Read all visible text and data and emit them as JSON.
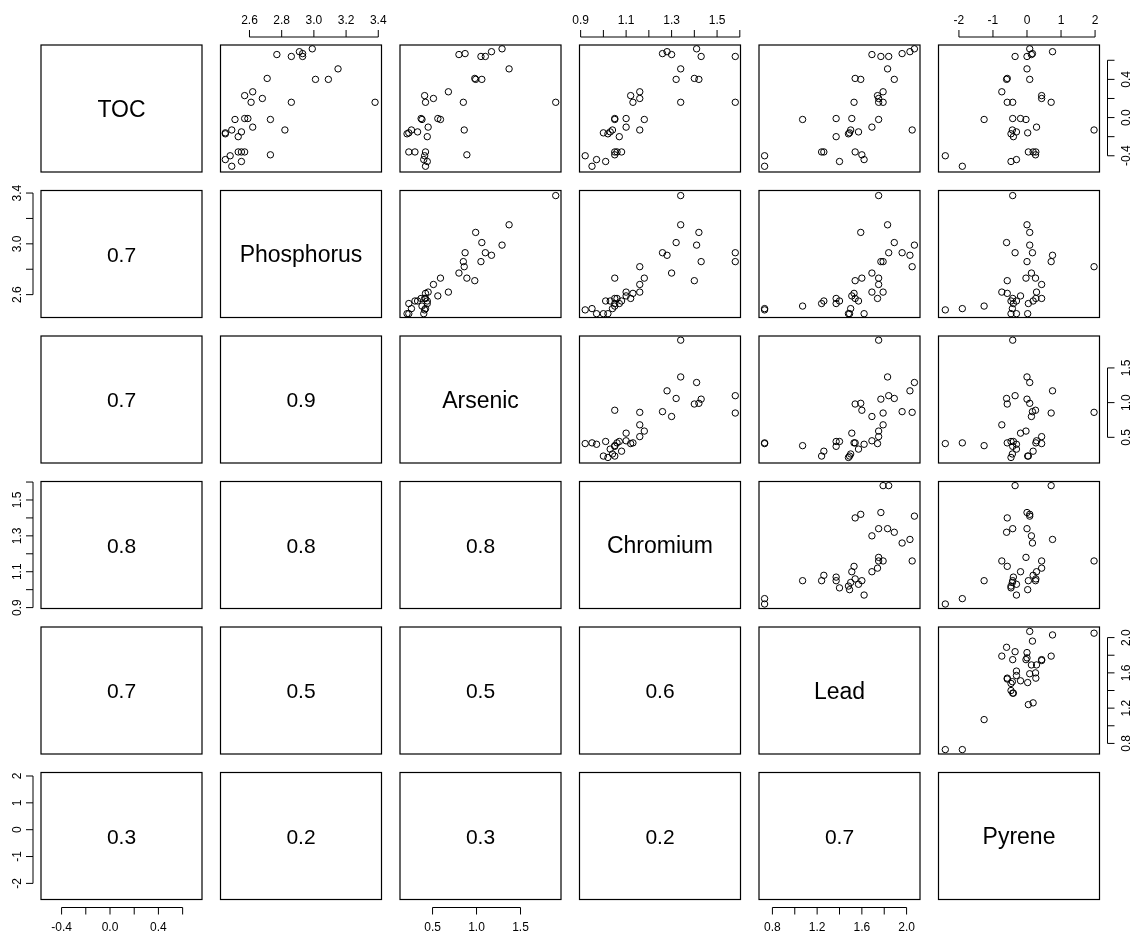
{
  "chart_data": [
    {
      "type": "other",
      "title": "TOC"
    },
    {
      "type": "scatter",
      "color": "#000000",
      "marker": "circle",
      "xlim": [
        2.42,
        3.42
      ],
      "ylim": [
        -0.57,
        0.76
      ],
      "xticks": [
        2.6,
        2.8,
        {
          "value": 3,
          "label": "3.0"
        },
        3.2,
        3.4
      ],
      "tick_labels": "x",
      "x": [
        2.77,
        2.86,
        2.91,
        2.93,
        2.93,
        2.99,
        3.15,
        3.01,
        3.09,
        2.71,
        2.57,
        2.62,
        2.61,
        2.68,
        2.86,
        3.38,
        2.51,
        2.57,
        2.59,
        2.73,
        2.62,
        2.82,
        2.45,
        2.45,
        2.49,
        2.55,
        2.53,
        2.53,
        2.55,
        2.57,
        2.73,
        2.45,
        2.48,
        2.55,
        2.49
      ],
      "values": [
        0.66,
        0.64,
        0.69,
        0.67,
        0.64,
        0.72,
        0.51,
        0.4,
        0.4,
        0.41,
        0.23,
        0.27,
        0.16,
        0.2,
        0.16,
        0.16,
        -0.02,
        -0.01,
        -0.01,
        -0.02,
        -0.1,
        -0.13,
        -0.16,
        -0.17,
        -0.13,
        -0.15,
        -0.2,
        -0.36,
        -0.36,
        -0.36,
        -0.39,
        -0.44,
        -0.4,
        -0.46,
        -0.51
      ]
    },
    {
      "type": "scatter",
      "color": "#000000",
      "marker": "circle",
      "xlim": [
        0.13,
        1.96
      ],
      "ylim": [
        -0.57,
        0.76
      ],
      "tick_labels": false,
      "x": [
        0.8,
        1.05,
        1.17,
        0.87,
        1.1,
        1.29,
        1.37,
        1.06,
        0.99,
        0.98,
        0.41,
        0.68,
        0.42,
        0.51,
        0.85,
        1.9,
        0.38,
        0.37,
        0.56,
        0.59,
        0.45,
        0.86,
        0.23,
        0.21,
        0.26,
        0.33,
        0.44,
        0.23,
        0.3,
        0.42,
        0.89,
        0.4,
        0.41,
        0.44,
        0.42
      ],
      "values": [
        0.66,
        0.64,
        0.69,
        0.67,
        0.64,
        0.72,
        0.51,
        0.4,
        0.4,
        0.41,
        0.23,
        0.27,
        0.16,
        0.2,
        0.16,
        0.16,
        -0.02,
        -0.01,
        -0.01,
        -0.02,
        -0.1,
        -0.13,
        -0.16,
        -0.17,
        -0.13,
        -0.15,
        -0.2,
        -0.36,
        -0.36,
        -0.36,
        -0.39,
        -0.44,
        -0.4,
        -0.46,
        -0.51
      ]
    },
    {
      "type": "scatter",
      "color": "#000000",
      "marker": "circle",
      "xlim": [
        0.895,
        1.603
      ],
      "ylim": [
        -0.57,
        0.76
      ],
      "xticks": [
        0.9,
        {
          "value": 1,
          "label": null
        },
        1.1,
        {
          "value": 1.2,
          "label": null
        },
        1.3,
        {
          "value": 1.4,
          "label": null
        },
        1.5,
        {
          "value": 1.6,
          "label": null
        }
      ],
      "tick_labels": "x",
      "x": [
        1.3,
        1.43,
        1.28,
        1.26,
        1.58,
        1.41,
        1.34,
        1.32,
        1.42,
        1.4,
        1.12,
        1.16,
        1.13,
        1.16,
        1.58,
        1.34,
        1.05,
        1.05,
        1.1,
        1.18,
        1.1,
        1.16,
        1.0,
        1.02,
        1.04,
        1.03,
        1.07,
        1.05,
        1.08,
        1.06,
        1.05,
        0.97,
        0.92,
        1.01,
        0.95
      ],
      "values": [
        0.66,
        0.64,
        0.69,
        0.67,
        0.64,
        0.72,
        0.51,
        0.4,
        0.4,
        0.41,
        0.23,
        0.27,
        0.16,
        0.2,
        0.16,
        0.16,
        -0.02,
        -0.01,
        -0.01,
        -0.02,
        -0.1,
        -0.13,
        -0.16,
        -0.17,
        -0.13,
        -0.15,
        -0.2,
        -0.36,
        -0.36,
        -0.36,
        -0.39,
        -0.44,
        -0.4,
        -0.46,
        -0.51
      ]
    },
    {
      "type": "scatter",
      "color": "#000000",
      "marker": "circle",
      "xlim": [
        0.68,
        2.12
      ],
      "ylim": [
        -0.57,
        0.76
      ],
      "tick_labels": false,
      "x": [
        1.69,
        1.77,
        2.03,
        1.96,
        1.84,
        2.07,
        1.83,
        1.89,
        1.59,
        1.54,
        1.74,
        1.79,
        1.53,
        1.75,
        1.79,
        1.75,
        1.07,
        1.37,
        1.51,
        1.75,
        1.69,
        2.05,
        1.49,
        1.48,
        1.5,
        1.57,
        1.37,
        1.24,
        1.26,
        1.54,
        1.6,
        1.62,
        0.73,
        1.4,
        0.73
      ],
      "values": [
        0.66,
        0.64,
        0.69,
        0.67,
        0.64,
        0.72,
        0.51,
        0.4,
        0.4,
        0.41,
        0.23,
        0.27,
        0.16,
        0.2,
        0.16,
        0.16,
        -0.02,
        -0.01,
        -0.01,
        -0.02,
        -0.1,
        -0.13,
        -0.16,
        -0.17,
        -0.13,
        -0.15,
        -0.2,
        -0.36,
        -0.36,
        -0.36,
        -0.39,
        -0.44,
        -0.4,
        -0.46,
        -0.51
      ]
    },
    {
      "type": "scatter",
      "color": "#000000",
      "marker": "circle",
      "xlim": [
        -2.6,
        2.13
      ],
      "ylim": [
        -0.57,
        0.76
      ],
      "xticks": [
        -2,
        -1,
        0,
        1,
        2
      ],
      "yticks": [
        -0.4,
        {
          "value": -0.2,
          "label": null
        },
        {
          "value": 0,
          "label": "0.0"
        },
        {
          "value": 0.2,
          "label": null
        },
        0.4,
        {
          "value": 0.6,
          "label": null
        }
      ],
      "x": [
        0.13,
        0.0,
        0.75,
        0.16,
        -0.35,
        0.08,
        0.0,
        -0.6,
        0.08,
        -0.58,
        0.43,
        -0.74,
        -0.58,
        0.43,
        0.71,
        -0.42,
        -1.26,
        -0.42,
        -0.19,
        -0.03,
        0.28,
        1.97,
        0.02,
        -0.47,
        -0.43,
        -0.31,
        -0.4,
        0.04,
        0.18,
        0.26,
        0.25,
        -0.31,
        -2.4,
        -0.47,
        -1.9
      ],
      "values": [
        0.66,
        0.64,
        0.69,
        0.67,
        0.64,
        0.72,
        0.51,
        0.4,
        0.4,
        0.41,
        0.23,
        0.27,
        0.16,
        0.2,
        0.16,
        0.16,
        -0.02,
        -0.01,
        -0.01,
        -0.02,
        -0.1,
        -0.13,
        -0.16,
        -0.17,
        -0.13,
        -0.15,
        -0.2,
        -0.36,
        -0.36,
        -0.36,
        -0.39,
        -0.44,
        -0.4,
        -0.46,
        -0.51
      ]
    },
    {
      "type": "scatter",
      "annotations": [
        "0.7"
      ],
      "tick_labels": "y",
      "xlim": [
        -0.57,
        0.76
      ],
      "ylim": [
        2.42,
        3.42
      ],
      "yticks": [
        2.6,
        {
          "value": 2.8,
          "label": null
        },
        {
          "value": 3,
          "label": "3.0"
        },
        {
          "value": 3.2,
          "label": null
        },
        3.4
      ]
    },
    {
      "type": "other",
      "title": "Phosphorus"
    },
    {
      "type": "scatter",
      "color": "#000000",
      "marker": "circle",
      "xlim": [
        0.13,
        1.96
      ],
      "ylim": [
        2.42,
        3.42
      ],
      "tick_labels": false,
      "x": [
        0.8,
        1.05,
        1.17,
        0.87,
        1.1,
        1.29,
        1.37,
        1.06,
        0.99,
        0.98,
        0.41,
        0.68,
        0.42,
        0.51,
        0.85,
        1.9,
        0.38,
        0.37,
        0.56,
        0.59,
        0.45,
        0.86,
        0.23,
        0.21,
        0.26,
        0.33,
        0.44,
        0.23,
        0.3,
        0.42,
        0.89,
        0.4,
        0.41,
        0.44,
        0.42
      ],
      "values": [
        2.77,
        2.86,
        2.91,
        2.93,
        2.93,
        2.99,
        3.15,
        3.01,
        3.09,
        2.71,
        2.57,
        2.62,
        2.61,
        2.68,
        2.86,
        3.38,
        2.51,
        2.57,
        2.59,
        2.73,
        2.62,
        2.82,
        2.45,
        2.45,
        2.49,
        2.55,
        2.53,
        2.53,
        2.55,
        2.57,
        2.73,
        2.45,
        2.48,
        2.55,
        2.49
      ]
    },
    {
      "type": "scatter",
      "color": "#000000",
      "marker": "circle",
      "xlim": [
        0.895,
        1.603
      ],
      "ylim": [
        2.42,
        3.42
      ],
      "tick_labels": false,
      "x": [
        1.3,
        1.43,
        1.28,
        1.26,
        1.58,
        1.41,
        1.34,
        1.32,
        1.42,
        1.4,
        1.12,
        1.16,
        1.13,
        1.16,
        1.58,
        1.34,
        1.05,
        1.05,
        1.1,
        1.18,
        1.1,
        1.16,
        1.0,
        1.02,
        1.04,
        1.03,
        1.07,
        1.05,
        1.08,
        1.06,
        1.05,
        0.97,
        0.92,
        1.01,
        0.95
      ],
      "values": [
        2.77,
        2.86,
        2.91,
        2.93,
        2.93,
        2.99,
        3.15,
        3.01,
        3.09,
        2.71,
        2.57,
        2.62,
        2.61,
        2.68,
        2.86,
        3.38,
        2.51,
        2.57,
        2.59,
        2.73,
        2.62,
        2.82,
        2.45,
        2.45,
        2.49,
        2.55,
        2.53,
        2.53,
        2.55,
        2.57,
        2.73,
        2.45,
        2.48,
        2.55,
        2.49
      ]
    },
    {
      "type": "scatter",
      "color": "#000000",
      "marker": "circle",
      "xlim": [
        0.68,
        2.12
      ],
      "ylim": [
        2.42,
        3.42
      ],
      "tick_labels": false,
      "x": [
        1.69,
        1.77,
        2.03,
        1.96,
        1.84,
        2.07,
        1.83,
        1.89,
        1.59,
        1.54,
        1.74,
        1.79,
        1.53,
        1.75,
        1.79,
        1.75,
        1.07,
        1.37,
        1.51,
        1.75,
        1.69,
        2.05,
        1.49,
        1.48,
        1.5,
        1.57,
        1.37,
        1.24,
        1.26,
        1.54,
        1.6,
        1.62,
        0.73,
        1.4,
        0.73
      ],
      "values": [
        2.77,
        2.86,
        2.91,
        2.93,
        2.93,
        2.99,
        3.15,
        3.01,
        3.09,
        2.71,
        2.57,
        2.62,
        2.61,
        2.68,
        2.86,
        3.38,
        2.51,
        2.57,
        2.59,
        2.73,
        2.62,
        2.82,
        2.45,
        2.45,
        2.49,
        2.55,
        2.53,
        2.53,
        2.55,
        2.57,
        2.73,
        2.45,
        2.48,
        2.55,
        2.49
      ]
    },
    {
      "type": "scatter",
      "color": "#000000",
      "marker": "circle",
      "xlim": [
        -2.6,
        2.13
      ],
      "ylim": [
        2.42,
        3.42
      ],
      "tick_labels": false,
      "x": [
        0.13,
        0.0,
        0.75,
        0.16,
        -0.35,
        0.08,
        0.0,
        -0.6,
        0.08,
        -0.58,
        0.43,
        -0.74,
        -0.58,
        0.43,
        0.71,
        -0.42,
        -1.26,
        -0.42,
        -0.19,
        -0.03,
        0.28,
        1.97,
        0.02,
        -0.47,
        -0.43,
        -0.31,
        -0.4,
        0.04,
        0.18,
        0.26,
        0.25,
        -0.31,
        -2.4,
        -0.47,
        -1.9
      ],
      "values": [
        2.77,
        2.86,
        2.91,
        2.93,
        2.93,
        2.99,
        3.15,
        3.01,
        3.09,
        2.71,
        2.57,
        2.62,
        2.61,
        2.68,
        2.86,
        3.38,
        2.51,
        2.57,
        2.59,
        2.73,
        2.62,
        2.82,
        2.45,
        2.45,
        2.49,
        2.55,
        2.53,
        2.53,
        2.55,
        2.57,
        2.73,
        2.45,
        2.48,
        2.55,
        2.49
      ]
    },
    {
      "type": "other",
      "annotations": [
        "0.7"
      ]
    },
    {
      "type": "other",
      "annotations": [
        "0.9"
      ]
    },
    {
      "type": "other",
      "title": "Arsenic"
    },
    {
      "type": "scatter",
      "color": "#000000",
      "marker": "circle",
      "xlim": [
        0.895,
        1.603
      ],
      "ylim": [
        0.13,
        1.96
      ],
      "tick_labels": false,
      "x": [
        1.3,
        1.43,
        1.28,
        1.26,
        1.58,
        1.41,
        1.34,
        1.32,
        1.42,
        1.4,
        1.12,
        1.16,
        1.13,
        1.16,
        1.58,
        1.34,
        1.05,
        1.05,
        1.1,
        1.18,
        1.1,
        1.16,
        1.0,
        1.02,
        1.04,
        1.03,
        1.07,
        1.05,
        1.08,
        1.06,
        1.05,
        0.97,
        0.92,
        1.01,
        0.95
      ],
      "values": [
        0.8,
        1.05,
        1.17,
        0.87,
        1.1,
        1.29,
        1.37,
        1.06,
        0.99,
        0.98,
        0.41,
        0.68,
        0.42,
        0.51,
        0.85,
        1.9,
        0.38,
        0.37,
        0.56,
        0.59,
        0.45,
        0.86,
        0.23,
        0.21,
        0.26,
        0.33,
        0.44,
        0.23,
        0.3,
        0.42,
        0.89,
        0.4,
        0.41,
        0.44,
        0.42
      ]
    },
    {
      "type": "scatter",
      "color": "#000000",
      "marker": "circle",
      "xlim": [
        0.68,
        2.12
      ],
      "ylim": [
        0.13,
        1.96
      ],
      "tick_labels": false,
      "x": [
        1.69,
        1.77,
        2.03,
        1.96,
        1.84,
        2.07,
        1.83,
        1.89,
        1.59,
        1.54,
        1.74,
        1.79,
        1.53,
        1.75,
        1.79,
        1.75,
        1.07,
        1.37,
        1.51,
        1.75,
        1.69,
        2.05,
        1.49,
        1.48,
        1.5,
        1.57,
        1.37,
        1.24,
        1.26,
        1.54,
        1.6,
        1.62,
        0.73,
        1.4,
        0.73
      ],
      "values": [
        0.8,
        1.05,
        1.17,
        0.87,
        1.1,
        1.29,
        1.37,
        1.06,
        0.99,
        0.98,
        0.41,
        0.68,
        0.42,
        0.51,
        0.85,
        1.9,
        0.38,
        0.37,
        0.56,
        0.59,
        0.45,
        0.86,
        0.23,
        0.21,
        0.26,
        0.33,
        0.44,
        0.23,
        0.3,
        0.42,
        0.89,
        0.4,
        0.41,
        0.44,
        0.42
      ]
    },
    {
      "type": "scatter",
      "color": "#000000",
      "marker": "circle",
      "xlim": [
        -2.6,
        2.13
      ],
      "ylim": [
        0.13,
        1.96
      ],
      "yticks": [
        0.5,
        {
          "value": 1,
          "label": "1.0"
        },
        1.5
      ],
      "tick_labels": "y",
      "x": [
        0.13,
        0.0,
        0.75,
        0.16,
        -0.35,
        0.08,
        0.0,
        -0.6,
        0.08,
        -0.58,
        0.43,
        -0.74,
        -0.58,
        0.43,
        0.71,
        -0.42,
        -1.26,
        -0.42,
        -0.19,
        -0.03,
        0.28,
        1.97,
        0.02,
        -0.47,
        -0.43,
        -0.31,
        -0.4,
        0.04,
        0.18,
        0.26,
        0.25,
        -0.31,
        -2.4,
        -0.47,
        -1.9
      ],
      "values": [
        0.8,
        1.05,
        1.17,
        0.87,
        1.1,
        1.29,
        1.37,
        1.06,
        0.99,
        0.98,
        0.41,
        0.68,
        0.42,
        0.51,
        0.85,
        1.9,
        0.38,
        0.37,
        0.56,
        0.59,
        0.45,
        0.86,
        0.23,
        0.21,
        0.26,
        0.33,
        0.44,
        0.23,
        0.3,
        0.42,
        0.89,
        0.4,
        0.41,
        0.44,
        0.42
      ]
    },
    {
      "type": "scatter",
      "annotations": [
        "0.8"
      ],
      "tick_labels": "y",
      "xlim": [
        -0.57,
        0.76
      ],
      "ylim": [
        0.895,
        1.603
      ],
      "yticks": [
        0.9,
        {
          "value": 1,
          "label": null
        },
        1.1,
        {
          "value": 1.2,
          "label": null
        },
        1.3,
        {
          "value": 1.4,
          "label": null
        },
        1.5,
        {
          "value": 1.6,
          "label": null
        }
      ]
    },
    {
      "type": "other",
      "annotations": [
        "0.8"
      ]
    },
    {
      "type": "other",
      "annotations": [
        "0.8"
      ]
    },
    {
      "type": "other",
      "title": "Chromium"
    },
    {
      "type": "scatter",
      "color": "#000000",
      "marker": "circle",
      "xlim": [
        0.68,
        2.12
      ],
      "ylim": [
        0.895,
        1.603
      ],
      "tick_labels": false,
      "x": [
        1.69,
        1.77,
        2.03,
        1.96,
        1.84,
        2.07,
        1.83,
        1.89,
        1.59,
        1.54,
        1.74,
        1.79,
        1.53,
        1.75,
        1.79,
        1.75,
        1.07,
        1.37,
        1.51,
        1.75,
        1.69,
        2.05,
        1.49,
        1.48,
        1.5,
        1.57,
        1.37,
        1.24,
        1.26,
        1.54,
        1.6,
        1.62,
        0.73,
        1.4,
        0.73
      ],
      "values": [
        1.3,
        1.43,
        1.28,
        1.26,
        1.58,
        1.41,
        1.34,
        1.32,
        1.42,
        1.4,
        1.12,
        1.16,
        1.13,
        1.16,
        1.58,
        1.34,
        1.05,
        1.05,
        1.1,
        1.18,
        1.1,
        1.16,
        1.0,
        1.02,
        1.04,
        1.03,
        1.07,
        1.05,
        1.08,
        1.06,
        1.05,
        0.97,
        0.92,
        1.01,
        0.95
      ]
    },
    {
      "type": "scatter",
      "color": "#000000",
      "marker": "circle",
      "xlim": [
        -2.6,
        2.13
      ],
      "ylim": [
        0.895,
        1.603
      ],
      "tick_labels": false,
      "x": [
        0.13,
        0.0,
        0.75,
        0.16,
        -0.35,
        0.08,
        0.0,
        -0.6,
        0.08,
        -0.58,
        0.43,
        -0.74,
        -0.58,
        0.43,
        0.71,
        -0.42,
        -1.26,
        -0.42,
        -0.19,
        -0.03,
        0.28,
        1.97,
        0.02,
        -0.47,
        -0.43,
        -0.31,
        -0.4,
        0.04,
        0.18,
        0.26,
        0.25,
        -0.31,
        -2.4,
        -0.47,
        -1.9
      ],
      "values": [
        1.3,
        1.43,
        1.28,
        1.26,
        1.58,
        1.41,
        1.34,
        1.32,
        1.42,
        1.4,
        1.12,
        1.16,
        1.13,
        1.16,
        1.58,
        1.34,
        1.05,
        1.05,
        1.1,
        1.18,
        1.1,
        1.16,
        1.0,
        1.02,
        1.04,
        1.03,
        1.07,
        1.05,
        1.08,
        1.06,
        1.05,
        0.97,
        0.92,
        1.01,
        0.95
      ]
    },
    {
      "type": "other",
      "annotations": [
        "0.7"
      ]
    },
    {
      "type": "other",
      "annotations": [
        "0.5"
      ]
    },
    {
      "type": "other",
      "annotations": [
        "0.5"
      ]
    },
    {
      "type": "other",
      "annotations": [
        "0.6"
      ]
    },
    {
      "type": "other",
      "title": "Lead"
    },
    {
      "type": "scatter",
      "color": "#000000",
      "marker": "circle",
      "xlim": [
        -2.6,
        2.13
      ],
      "ylim": [
        0.68,
        2.12
      ],
      "yticks": [
        0.8,
        {
          "value": 1,
          "label": null
        },
        1.2,
        {
          "value": 1.4,
          "label": null
        },
        1.6,
        {
          "value": 1.8,
          "label": null
        },
        {
          "value": 2,
          "label": "2.0"
        }
      ],
      "tick_labels": "y",
      "x": [
        0.13,
        0.0,
        0.75,
        0.16,
        -0.35,
        0.08,
        0.0,
        -0.6,
        0.08,
        -0.58,
        0.43,
        -0.74,
        -0.58,
        0.43,
        0.71,
        -0.42,
        -1.26,
        -0.42,
        -0.19,
        -0.03,
        0.28,
        1.97,
        0.02,
        -0.47,
        -0.43,
        -0.31,
        -0.4,
        0.04,
        0.18,
        0.26,
        0.25,
        -0.31,
        -2.4,
        -0.47,
        -1.9
      ],
      "values": [
        1.69,
        1.77,
        2.03,
        1.96,
        1.84,
        2.07,
        1.83,
        1.89,
        1.59,
        1.54,
        1.74,
        1.79,
        1.53,
        1.75,
        1.79,
        1.75,
        1.07,
        1.37,
        1.51,
        1.75,
        1.69,
        2.05,
        1.49,
        1.48,
        1.5,
        1.57,
        1.37,
        1.24,
        1.26,
        1.54,
        1.6,
        1.62,
        0.73,
        1.4,
        0.73
      ]
    },
    {
      "type": "scatter",
      "annotations": [
        "0.3"
      ],
      "xlim": [
        -0.57,
        0.76
      ],
      "xticks": [
        -0.4,
        {
          "value": -0.2,
          "label": null
        },
        {
          "value": 0,
          "label": "0.0"
        },
        {
          "value": 0.2,
          "label": null
        },
        0.4,
        {
          "value": 0.6,
          "label": null
        }
      ],
      "ylim": [
        -2.6,
        2.13
      ],
      "yticks": [
        -2,
        -1,
        0,
        1,
        2
      ]
    },
    {
      "type": "other",
      "annotations": [
        "0.2"
      ]
    },
    {
      "type": "scatter",
      "annotations": [
        "0.3"
      ],
      "tick_labels": "x",
      "ylim": [
        -2.6,
        2.13
      ],
      "xlim": [
        0.13,
        1.96
      ],
      "xticks": [
        0.5,
        {
          "value": 1,
          "label": "1.0"
        },
        1.5
      ]
    },
    {
      "type": "other",
      "annotations": [
        "0.2"
      ]
    },
    {
      "type": "scatter",
      "annotations": [
        "0.7"
      ],
      "tick_labels": "x",
      "ylim": [
        -2.6,
        2.13
      ],
      "xlim": [
        0.68,
        2.12
      ],
      "xticks": [
        0.8,
        {
          "value": 1,
          "label": null
        },
        1.2,
        {
          "value": 1.4,
          "label": null
        },
        1.6,
        {
          "value": 1.8,
          "label": null
        },
        {
          "value": 2,
          "label": "2.0"
        }
      ]
    },
    {
      "type": "other",
      "title": "Pyrene"
    }
  ]
}
